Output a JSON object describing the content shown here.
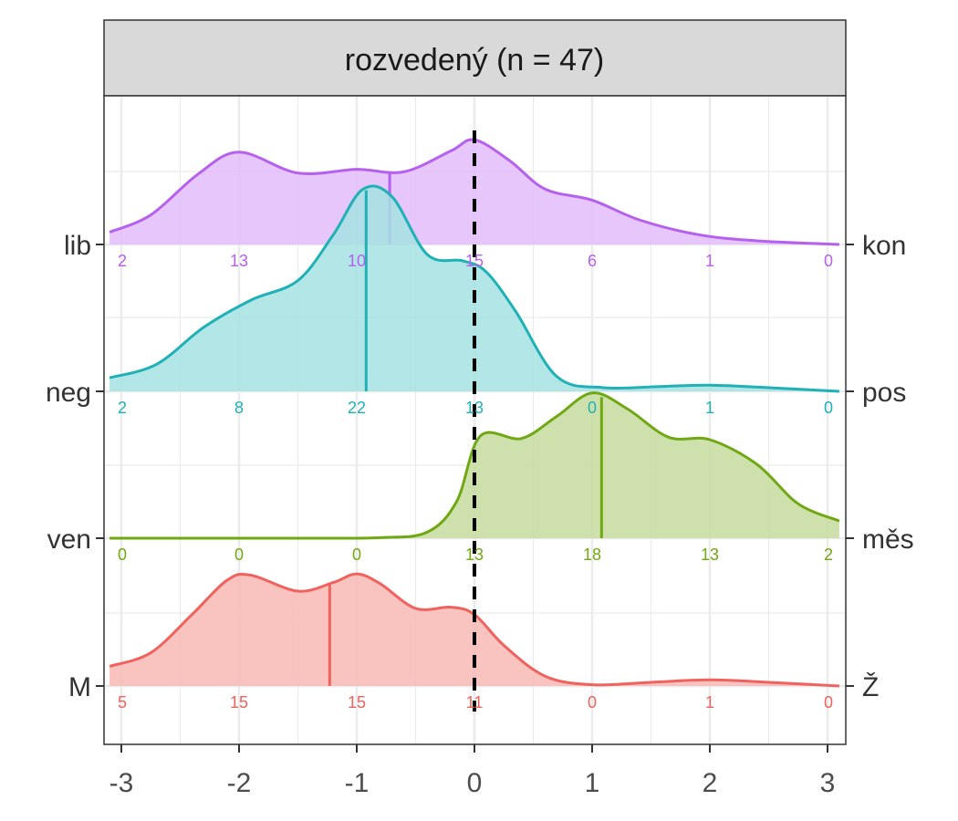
{
  "chart_data": {
    "type": "ridgeline-density",
    "title": "rozvedený (n = 47)",
    "x_ticks": [
      -3,
      -2,
      -1,
      0,
      1,
      2,
      3
    ],
    "xlim": [
      -3.1,
      3.1
    ],
    "count_positions": [
      -3,
      -2,
      -1,
      0,
      1,
      2,
      3
    ],
    "reference_line_x": 0,
    "grid": true,
    "rows": [
      {
        "left": "M",
        "right": "Ž",
        "color": "#f0625d",
        "fill": "#f8b8b4",
        "mean": -1.23,
        "counts": [
          "5",
          "15",
          "15",
          "11",
          "0",
          "1",
          "0"
        ],
        "density": [
          [
            -3.1,
            0.16
          ],
          [
            -2.75,
            0.27
          ],
          [
            -2.4,
            0.58
          ],
          [
            -2.1,
            0.86
          ],
          [
            -1.9,
            0.9
          ],
          [
            -1.5,
            0.77
          ],
          [
            -1.2,
            0.84
          ],
          [
            -1.0,
            0.91
          ],
          [
            -0.8,
            0.83
          ],
          [
            -0.5,
            0.63
          ],
          [
            -0.2,
            0.64
          ],
          [
            0.0,
            0.58
          ],
          [
            0.25,
            0.33
          ],
          [
            0.6,
            0.08
          ],
          [
            1.0,
            0.01
          ],
          [
            1.5,
            0.03
          ],
          [
            2.0,
            0.05
          ],
          [
            2.5,
            0.03
          ],
          [
            3.1,
            0.0
          ]
        ]
      },
      {
        "left": "ven",
        "right": "měs",
        "color": "#6fa812",
        "fill": "#c5dc9f",
        "mean": 1.08,
        "counts": [
          "0",
          "0",
          "0",
          "13",
          "18",
          "13",
          "2"
        ],
        "density": [
          [
            -3.1,
            0.0
          ],
          [
            -1.5,
            0.0
          ],
          [
            -0.8,
            0.005
          ],
          [
            -0.4,
            0.05
          ],
          [
            -0.15,
            0.3
          ],
          [
            0.05,
            0.83
          ],
          [
            0.4,
            0.81
          ],
          [
            0.7,
            0.99
          ],
          [
            1.0,
            1.18
          ],
          [
            1.3,
            1.05
          ],
          [
            1.65,
            0.82
          ],
          [
            2.0,
            0.8
          ],
          [
            2.4,
            0.6
          ],
          [
            2.75,
            0.28
          ],
          [
            3.1,
            0.14
          ]
        ]
      },
      {
        "left": "neg",
        "right": "pos",
        "color": "#1fb1b6",
        "fill": "#a5e2e3",
        "mean": -0.92,
        "counts": [
          "2",
          "8",
          "22",
          "13",
          "0",
          "1",
          "0"
        ],
        "density": [
          [
            -3.1,
            0.11
          ],
          [
            -2.7,
            0.22
          ],
          [
            -2.3,
            0.52
          ],
          [
            -1.9,
            0.74
          ],
          [
            -1.5,
            0.9
          ],
          [
            -1.2,
            1.27
          ],
          [
            -0.95,
            1.64
          ],
          [
            -0.7,
            1.58
          ],
          [
            -0.4,
            1.11
          ],
          [
            -0.1,
            1.06
          ],
          [
            0.1,
            0.97
          ],
          [
            0.35,
            0.65
          ],
          [
            0.7,
            0.12
          ],
          [
            1.1,
            0.03
          ],
          [
            1.6,
            0.04
          ],
          [
            2.0,
            0.05
          ],
          [
            2.5,
            0.03
          ],
          [
            3.1,
            0.0
          ]
        ]
      },
      {
        "left": "lib",
        "right": "kon",
        "color": "#b660ee",
        "fill": "#e3bcfa",
        "mean": -0.72,
        "counts": [
          "2",
          "13",
          "10",
          "15",
          "6",
          "1",
          "0"
        ],
        "density": [
          [
            -3.1,
            0.1
          ],
          [
            -2.75,
            0.24
          ],
          [
            -2.35,
            0.57
          ],
          [
            -2.0,
            0.75
          ],
          [
            -1.5,
            0.58
          ],
          [
            -1.0,
            0.61
          ],
          [
            -0.6,
            0.59
          ],
          [
            -0.2,
            0.76
          ],
          [
            0.0,
            0.85
          ],
          [
            0.3,
            0.68
          ],
          [
            0.6,
            0.45
          ],
          [
            1.0,
            0.36
          ],
          [
            1.4,
            0.2
          ],
          [
            1.9,
            0.08
          ],
          [
            2.4,
            0.03
          ],
          [
            3.1,
            0.0
          ]
        ]
      }
    ]
  }
}
